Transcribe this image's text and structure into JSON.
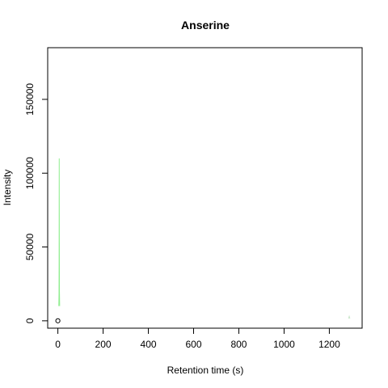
{
  "chart_data": {
    "type": "line",
    "title": "Anserine",
    "xlabel": "Retention time (s)",
    "ylabel": "Intensity",
    "xlim": [
      -45,
      1345
    ],
    "ylim": [
      -5000,
      185000
    ],
    "x_ticks": [
      0,
      200,
      400,
      600,
      800,
      1000,
      1200
    ],
    "y_ticks": [
      0,
      50000,
      100000,
      150000
    ],
    "grid": false,
    "series": [
      {
        "color": "#90EE90",
        "points": [
          [
            4,
            10000
          ],
          [
            5,
            18000
          ],
          [
            5.5,
            40000
          ],
          [
            6,
            110000
          ],
          [
            6.5,
            55000
          ],
          [
            7,
            20000
          ],
          [
            8,
            10000
          ]
        ]
      },
      {
        "color": "#C8E6C8",
        "points": [
          [
            1285,
            1500
          ],
          [
            1288,
            3000
          ],
          [
            1291,
            1500
          ]
        ]
      }
    ],
    "markers": [
      {
        "x": 0,
        "y": 0,
        "shape": "open-circle",
        "color": "#000000"
      }
    ]
  }
}
